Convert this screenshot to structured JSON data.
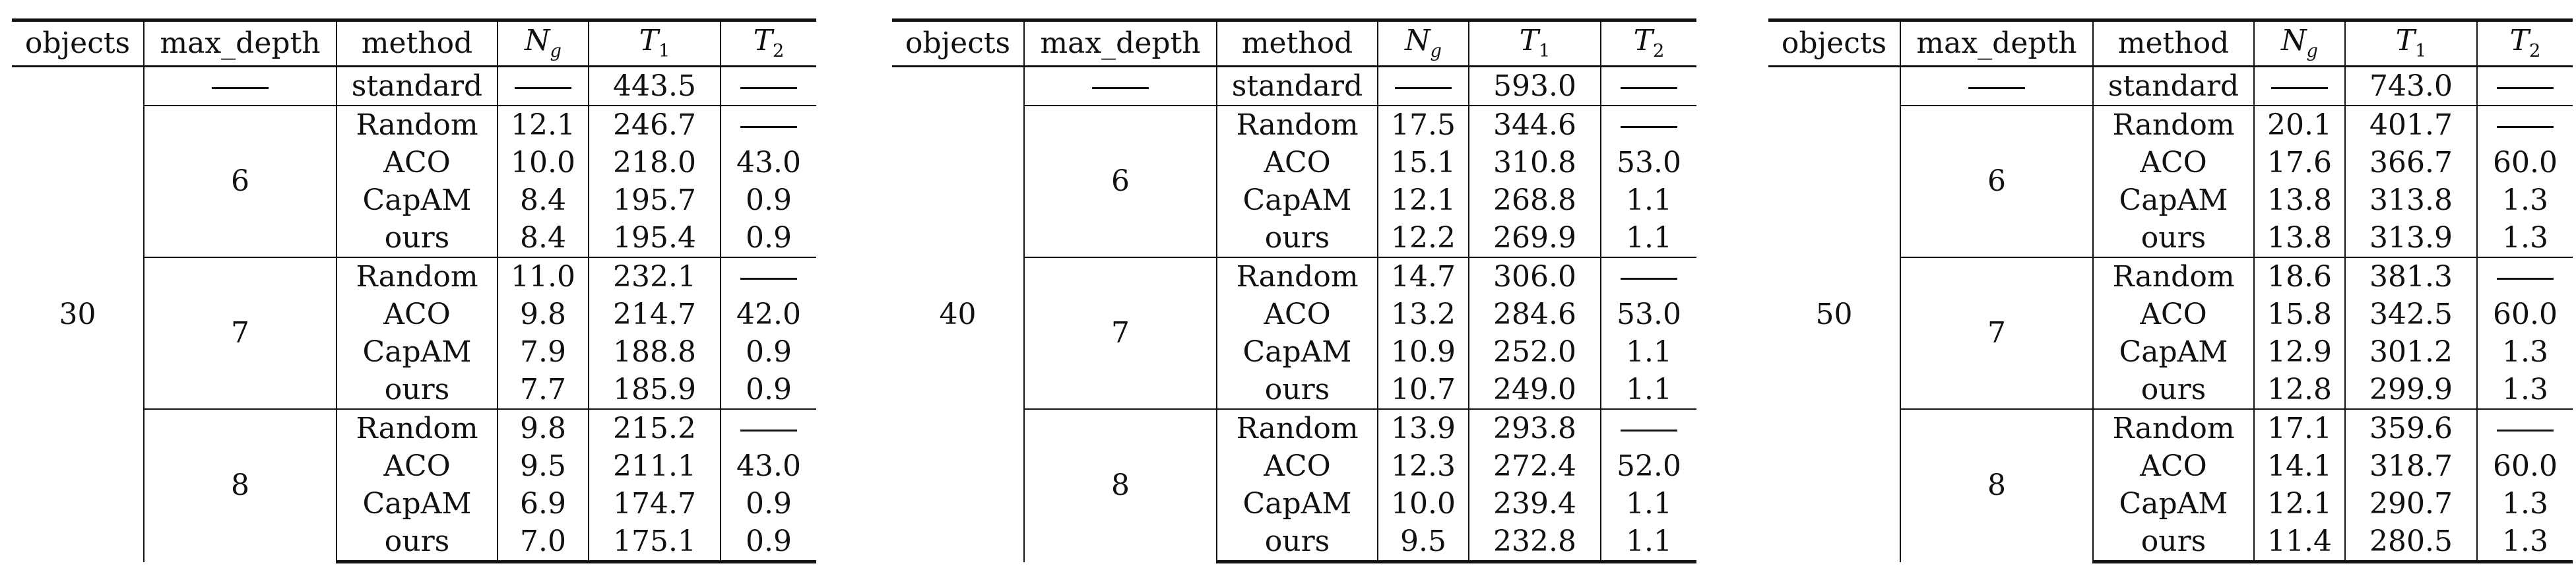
{
  "columns": {
    "objects": "objects",
    "max_depth": "max_depth",
    "method": "method",
    "ng_main": "N",
    "ng_sub": "g",
    "t1_main": "T",
    "t1_sub": "1",
    "t2_main": "T",
    "t2_sub": "2"
  },
  "tables": [
    {
      "objects": "30",
      "standard": {
        "method": "standard",
        "t1": "443.5"
      },
      "groups": [
        {
          "max_depth": "6",
          "rows": [
            {
              "method": "Random",
              "ng": "12.1",
              "t1": "246.7",
              "t2": null
            },
            {
              "method": "ACO",
              "ng": "10.0",
              "t1": "218.0",
              "t2": "43.0"
            },
            {
              "method": "CapAM",
              "ng": "8.4",
              "t1": "195.7",
              "t2": "0.9"
            },
            {
              "method": "ours",
              "ng": "8.4",
              "t1": "195.4",
              "t2": "0.9"
            }
          ]
        },
        {
          "max_depth": "7",
          "rows": [
            {
              "method": "Random",
              "ng": "11.0",
              "t1": "232.1",
              "t2": null
            },
            {
              "method": "ACO",
              "ng": "9.8",
              "t1": "214.7",
              "t2": "42.0"
            },
            {
              "method": "CapAM",
              "ng": "7.9",
              "t1": "188.8",
              "t2": "0.9"
            },
            {
              "method": "ours",
              "ng": "7.7",
              "t1": "185.9",
              "t2": "0.9"
            }
          ]
        },
        {
          "max_depth": "8",
          "rows": [
            {
              "method": "Random",
              "ng": "9.8",
              "t1": "215.2",
              "t2": null
            },
            {
              "method": "ACO",
              "ng": "9.5",
              "t1": "211.1",
              "t2": "43.0"
            },
            {
              "method": "CapAM",
              "ng": "6.9",
              "t1": "174.7",
              "t2": "0.9"
            },
            {
              "method": "ours",
              "ng": "7.0",
              "t1": "175.1",
              "t2": "0.9"
            }
          ]
        }
      ]
    },
    {
      "objects": "40",
      "standard": {
        "method": "standard",
        "t1": "593.0"
      },
      "groups": [
        {
          "max_depth": "6",
          "rows": [
            {
              "method": "Random",
              "ng": "17.5",
              "t1": "344.6",
              "t2": null
            },
            {
              "method": "ACO",
              "ng": "15.1",
              "t1": "310.8",
              "t2": "53.0"
            },
            {
              "method": "CapAM",
              "ng": "12.1",
              "t1": "268.8",
              "t2": "1.1"
            },
            {
              "method": "ours",
              "ng": "12.2",
              "t1": "269.9",
              "t2": "1.1"
            }
          ]
        },
        {
          "max_depth": "7",
          "rows": [
            {
              "method": "Random",
              "ng": "14.7",
              "t1": "306.0",
              "t2": null
            },
            {
              "method": "ACO",
              "ng": "13.2",
              "t1": "284.6",
              "t2": "53.0"
            },
            {
              "method": "CapAM",
              "ng": "10.9",
              "t1": "252.0",
              "t2": "1.1"
            },
            {
              "method": "ours",
              "ng": "10.7",
              "t1": "249.0",
              "t2": "1.1"
            }
          ]
        },
        {
          "max_depth": "8",
          "rows": [
            {
              "method": "Random",
              "ng": "13.9",
              "t1": "293.8",
              "t2": null
            },
            {
              "method": "ACO",
              "ng": "12.3",
              "t1": "272.4",
              "t2": "52.0"
            },
            {
              "method": "CapAM",
              "ng": "10.0",
              "t1": "239.4",
              "t2": "1.1"
            },
            {
              "method": "ours",
              "ng": "9.5",
              "t1": "232.8",
              "t2": "1.1"
            }
          ]
        }
      ]
    },
    {
      "objects": "50",
      "standard": {
        "method": "standard",
        "t1": "743.0"
      },
      "groups": [
        {
          "max_depth": "6",
          "rows": [
            {
              "method": "Random",
              "ng": "20.1",
              "t1": "401.7",
              "t2": null
            },
            {
              "method": "ACO",
              "ng": "17.6",
              "t1": "366.7",
              "t2": "60.0"
            },
            {
              "method": "CapAM",
              "ng": "13.8",
              "t1": "313.8",
              "t2": "1.3"
            },
            {
              "method": "ours",
              "ng": "13.8",
              "t1": "313.9",
              "t2": "1.3"
            }
          ]
        },
        {
          "max_depth": "7",
          "rows": [
            {
              "method": "Random",
              "ng": "18.6",
              "t1": "381.3",
              "t2": null
            },
            {
              "method": "ACO",
              "ng": "15.8",
              "t1": "342.5",
              "t2": "60.0"
            },
            {
              "method": "CapAM",
              "ng": "12.9",
              "t1": "301.2",
              "t2": "1.3"
            },
            {
              "method": "ours",
              "ng": "12.8",
              "t1": "299.9",
              "t2": "1.3"
            }
          ]
        },
        {
          "max_depth": "8",
          "rows": [
            {
              "method": "Random",
              "ng": "17.1",
              "t1": "359.6",
              "t2": null
            },
            {
              "method": "ACO",
              "ng": "14.1",
              "t1": "318.7",
              "t2": "60.0"
            },
            {
              "method": "CapAM",
              "ng": "12.1",
              "t1": "290.7",
              "t2": "1.3"
            },
            {
              "method": "ours",
              "ng": "11.4",
              "t1": "280.5",
              "t2": "1.3"
            }
          ]
        }
      ]
    }
  ]
}
